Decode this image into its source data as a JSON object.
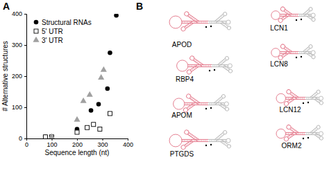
{
  "chart_data": {
    "type": "scatter",
    "x_label": "Sequence length (nt)",
    "y_label": "# Alternative structures",
    "xlim": [
      0,
      400
    ],
    "xticks": [
      0,
      100,
      200,
      300,
      400
    ],
    "ylim": [
      0,
      400
    ],
    "yticks": [
      0,
      100,
      200,
      300,
      400
    ],
    "grid": false,
    "legend": "upper left",
    "series": [
      {
        "name": "Structural RNAs",
        "color": "#000000",
        "marker": "circle",
        "x": [
          75,
          100,
          200,
          255,
          285,
          320,
          330,
          355
        ],
        "values": [
          5,
          5,
          30,
          90,
          110,
          160,
          275,
          395
        ]
      },
      {
        "name": "5' UTR",
        "color": "#000000",
        "marker": "open-square",
        "x": [
          75,
          100,
          200,
          240,
          265,
          290,
          330
        ],
        "values": [
          5,
          5,
          20,
          35,
          45,
          30,
          80
        ]
      },
      {
        "name": "3' UTR",
        "color": "#a0a0a0",
        "marker": "triangle",
        "x": [
          100,
          200,
          225,
          250,
          295,
          305
        ],
        "values": [
          5,
          60,
          120,
          140,
          195,
          220
        ]
      }
    ]
  },
  "panel_labels": [
    "A",
    "B"
  ],
  "structures": [
    {
      "label": "APOD"
    },
    {
      "label": "RBP4"
    },
    {
      "label": "APOM"
    },
    {
      "label": "PTGDS"
    },
    {
      "label": "LCN1"
    },
    {
      "label": "LCN8"
    },
    {
      "label": "LCN12"
    },
    {
      "label": "ORM2"
    }
  ]
}
